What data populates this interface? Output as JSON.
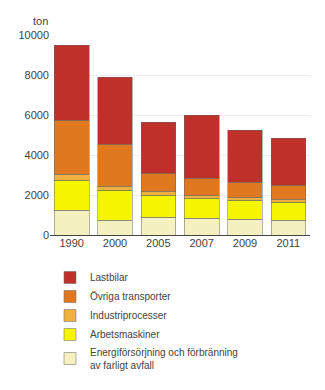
{
  "chart_data": {
    "type": "bar",
    "stacked": true,
    "ylabel": "ton",
    "categories": [
      "1990",
      "2000",
      "2005",
      "2007",
      "2009",
      "2011"
    ],
    "series": [
      {
        "name": "Energiförsörjning och förbränning\nav farligt avfall",
        "color": "#f5f0c0",
        "values": [
          1250,
          750,
          900,
          850,
          800,
          750
        ]
      },
      {
        "name": "Arbetsmaskiner",
        "color": "#f5f500",
        "values": [
          1500,
          1500,
          1100,
          1000,
          950,
          900
        ]
      },
      {
        "name": "Industriprocesser",
        "color": "#f0b040",
        "values": [
          300,
          200,
          200,
          150,
          150,
          130
        ]
      },
      {
        "name": "Övriga transporter",
        "color": "#e07820",
        "values": [
          2700,
          2100,
          900,
          850,
          750,
          700
        ]
      },
      {
        "name": "Lastbilar",
        "color": "#c0302a",
        "values": [
          3750,
          3350,
          2550,
          3150,
          2600,
          2350
        ]
      }
    ],
    "ylim": [
      0,
      10000
    ],
    "yticks": [
      0,
      2000,
      4000,
      6000,
      8000,
      10000
    ],
    "grid": true,
    "legend": "bottom"
  }
}
